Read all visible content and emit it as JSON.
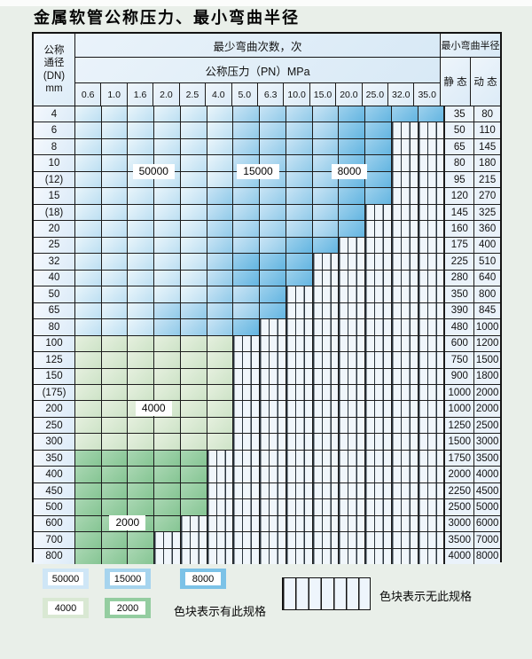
{
  "title": "金属软管公称压力、最小弯曲半径",
  "table_header": {
    "dn_line1": "公称",
    "dn_line2": "通径",
    "dn_line3": "(DN)",
    "dn_line4": "mm",
    "bend_cycles_label": "最少弯曲次数，次",
    "pressure_label": "公称压力（PN）MPa",
    "radius_label": "最小弯曲半径",
    "static_label": "静 态",
    "dynamic_label": "动 态"
  },
  "chart_data": {
    "type": "heatmap",
    "title": "金属软管公称压力、最小弯曲半径",
    "xlabel": "公称压力（PN）MPa",
    "ylabel": "公称通径(DN) mm",
    "value_meaning": "最少弯曲次数，次",
    "pressures": [
      "0.6",
      "1.0",
      "1.6",
      "2.0",
      "2.5",
      "4.0",
      "5.0",
      "6.3",
      "10.0",
      "15.0",
      "20.0",
      "25.0",
      "32.0",
      "35.0"
    ],
    "rows": [
      {
        "dn": "4",
        "static": "35",
        "dynamic": "80",
        "bands": [
          [
            50000,
            6
          ],
          [
            15000,
            10
          ],
          [
            8000,
            14
          ]
        ]
      },
      {
        "dn": "6",
        "static": "50",
        "dynamic": "110",
        "bands": [
          [
            50000,
            6
          ],
          [
            15000,
            10
          ],
          [
            8000,
            12
          ]
        ]
      },
      {
        "dn": "8",
        "static": "65",
        "dynamic": "145",
        "bands": [
          [
            50000,
            6
          ],
          [
            15000,
            10
          ],
          [
            8000,
            12
          ]
        ]
      },
      {
        "dn": "10",
        "static": "80",
        "dynamic": "180",
        "bands": [
          [
            50000,
            6
          ],
          [
            15000,
            10
          ],
          [
            8000,
            12
          ]
        ]
      },
      {
        "dn": "(12)",
        "static": "95",
        "dynamic": "215",
        "bands": [
          [
            50000,
            6
          ],
          [
            15000,
            10
          ],
          [
            8000,
            12
          ]
        ]
      },
      {
        "dn": "15",
        "static": "120",
        "dynamic": "270",
        "bands": [
          [
            50000,
            5
          ],
          [
            15000,
            10
          ],
          [
            8000,
            12
          ]
        ]
      },
      {
        "dn": "(18)",
        "static": "145",
        "dynamic": "325",
        "bands": [
          [
            50000,
            5
          ],
          [
            15000,
            10
          ],
          [
            8000,
            11
          ]
        ]
      },
      {
        "dn": "20",
        "static": "160",
        "dynamic": "360",
        "bands": [
          [
            50000,
            5
          ],
          [
            15000,
            10
          ],
          [
            8000,
            11
          ]
        ]
      },
      {
        "dn": "25",
        "static": "175",
        "dynamic": "400",
        "bands": [
          [
            50000,
            5
          ],
          [
            15000,
            8
          ],
          [
            8000,
            10
          ]
        ]
      },
      {
        "dn": "32",
        "static": "225",
        "dynamic": "510",
        "bands": [
          [
            50000,
            5
          ],
          [
            15000,
            6
          ],
          [
            8000,
            9
          ]
        ]
      },
      {
        "dn": "40",
        "static": "280",
        "dynamic": "640",
        "bands": [
          [
            50000,
            5
          ],
          [
            15000,
            6
          ],
          [
            8000,
            9
          ]
        ]
      },
      {
        "dn": "50",
        "static": "350",
        "dynamic": "800",
        "bands": [
          [
            50000,
            5
          ],
          [
            15000,
            7
          ],
          [
            8000,
            8
          ]
        ]
      },
      {
        "dn": "65",
        "static": "390",
        "dynamic": "845",
        "bands": [
          [
            50000,
            3
          ],
          [
            15000,
            7
          ],
          [
            8000,
            8
          ]
        ]
      },
      {
        "dn": "80",
        "static": "480",
        "dynamic": "1000",
        "bands": [
          [
            50000,
            3
          ],
          [
            15000,
            6
          ],
          [
            8000,
            7
          ]
        ]
      },
      {
        "dn": "100",
        "static": "600",
        "dynamic": "1200",
        "bands": [
          [
            4000,
            6
          ]
        ]
      },
      {
        "dn": "125",
        "static": "750",
        "dynamic": "1500",
        "bands": [
          [
            4000,
            6
          ]
        ]
      },
      {
        "dn": "150",
        "static": "900",
        "dynamic": "1800",
        "bands": [
          [
            4000,
            6
          ]
        ]
      },
      {
        "dn": "(175)",
        "static": "1000",
        "dynamic": "2000",
        "bands": [
          [
            4000,
            6
          ]
        ]
      },
      {
        "dn": "200",
        "static": "1000",
        "dynamic": "2000",
        "bands": [
          [
            4000,
            6
          ]
        ]
      },
      {
        "dn": "250",
        "static": "1250",
        "dynamic": "2500",
        "bands": [
          [
            4000,
            6
          ]
        ]
      },
      {
        "dn": "300",
        "static": "1500",
        "dynamic": "3000",
        "bands": [
          [
            4000,
            6
          ]
        ]
      },
      {
        "dn": "350",
        "static": "1750",
        "dynamic": "3500",
        "bands": [
          [
            2000,
            5
          ]
        ]
      },
      {
        "dn": "400",
        "static": "2000",
        "dynamic": "4000",
        "bands": [
          [
            2000,
            5
          ]
        ]
      },
      {
        "dn": "450",
        "static": "2250",
        "dynamic": "4500",
        "bands": [
          [
            2000,
            5
          ]
        ]
      },
      {
        "dn": "500",
        "static": "2500",
        "dynamic": "5000",
        "bands": [
          [
            2000,
            5
          ]
        ]
      },
      {
        "dn": "600",
        "static": "3000",
        "dynamic": "6000",
        "bands": [
          [
            2000,
            4
          ]
        ]
      },
      {
        "dn": "700",
        "static": "3500",
        "dynamic": "7000",
        "bands": [
          [
            2000,
            3
          ]
        ]
      },
      {
        "dn": "800",
        "static": "4000",
        "dynamic": "8000",
        "bands": [
          [
            2000,
            3
          ]
        ]
      }
    ],
    "overlay_labels": [
      {
        "text": "50000",
        "rows": [
          3,
          4
        ],
        "cols": [
          3,
          4
        ]
      },
      {
        "text": "15000",
        "rows": [
          3,
          4
        ],
        "cols": [
          7,
          8
        ]
      },
      {
        "text": "8000",
        "rows": [
          3,
          4
        ],
        "cols": [
          10,
          12
        ]
      },
      {
        "text": "4000",
        "rows": [
          18,
          18
        ],
        "cols": [
          3,
          4
        ]
      },
      {
        "text": "2000",
        "rows": [
          25,
          25
        ],
        "cols": [
          2,
          3
        ]
      }
    ],
    "legend_position": "bottom",
    "grid": true
  },
  "legend": {
    "items": [
      {
        "label": "50000",
        "color": "#cfe6f6"
      },
      {
        "label": "15000",
        "color": "#a6d4ee"
      },
      {
        "label": "8000",
        "color": "#7cc2e7"
      },
      {
        "label": "4000",
        "color": "#d9e8d3"
      },
      {
        "label": "2000",
        "color": "#94cda0"
      }
    ],
    "has_spec_text": "色块表示有此规格",
    "no_spec_text": "色块表示无此规格"
  }
}
